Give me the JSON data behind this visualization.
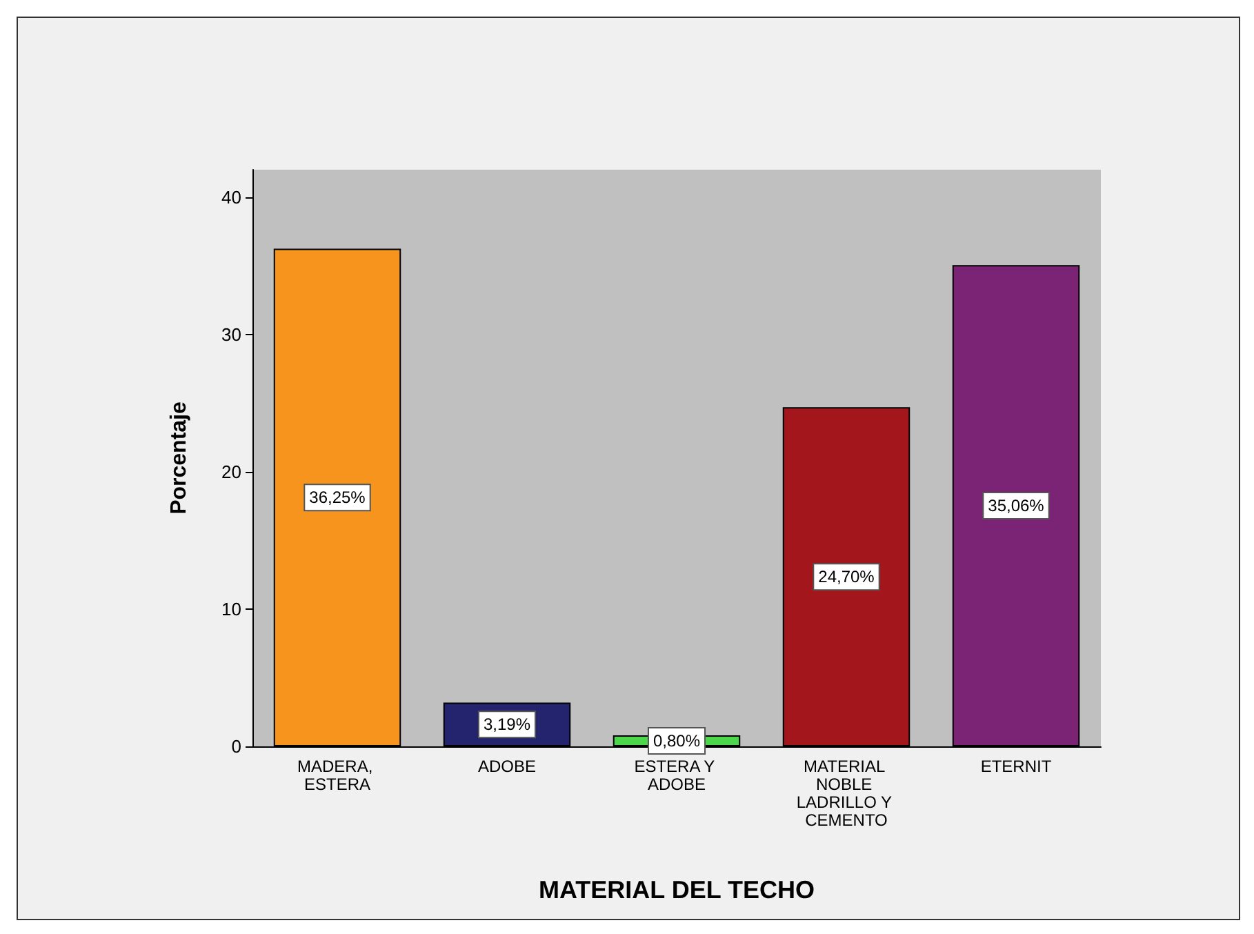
{
  "chart_data": {
    "type": "bar",
    "xlabel": "MATERIAL DEL TECHO",
    "ylabel": "Porcentaje",
    "categories": [
      "MADERA, ESTERA",
      "ADOBE",
      "ESTERA Y ADOBE",
      "MATERIAL NOBLE LADRILLO Y CEMENTO",
      "ETERNIT"
    ],
    "values": [
      36.25,
      3.19,
      0.8,
      24.7,
      35.06
    ],
    "colors": [
      "#f7941d",
      "#23236e",
      "#4cd64c",
      "#a3161b",
      "#7b2476"
    ],
    "value_labels": [
      "36,25%",
      "3,19%",
      "0,80%",
      "24,70%",
      "35,06%"
    ],
    "ylim": [
      0,
      42
    ],
    "yticks": [
      0,
      10,
      20,
      30,
      40
    ],
    "grid": false
  }
}
